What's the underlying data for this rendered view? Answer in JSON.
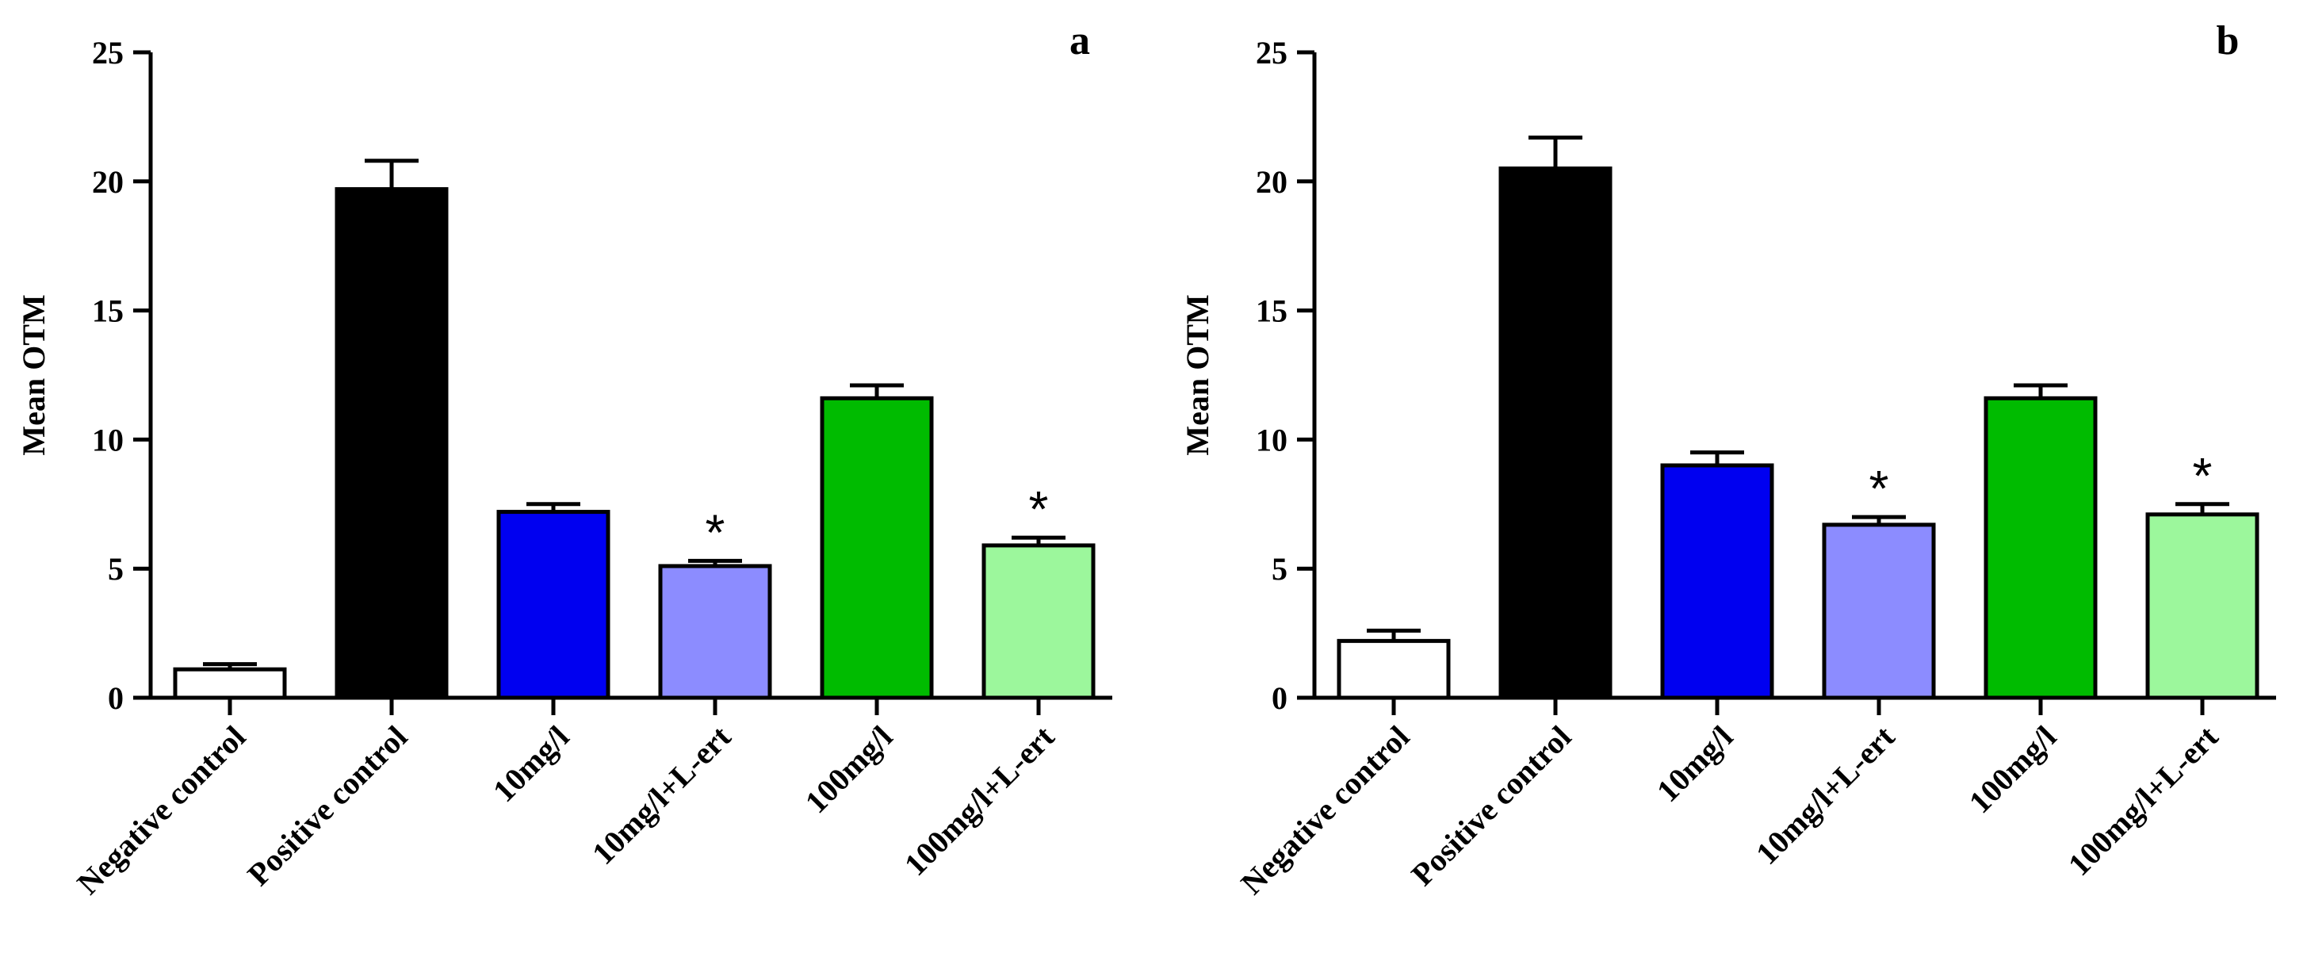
{
  "chart_data": [
    {
      "type": "bar",
      "panel_label": "a",
      "ylabel": "Mean OTM",
      "xlabel": "",
      "ylim": [
        0,
        25
      ],
      "yticks": [
        0,
        5,
        10,
        15,
        20,
        25
      ],
      "categories": [
        "Negative control",
        "Positive control",
        "10mg/l",
        "10mg/l+L-ert",
        "100mg/l",
        "100mg/l+L-ert"
      ],
      "values": [
        1.1,
        19.7,
        7.2,
        5.1,
        11.6,
        5.9
      ],
      "errors": [
        0.2,
        1.1,
        0.3,
        0.2,
        0.5,
        0.3
      ],
      "colors": [
        "#ffffff",
        "#000000",
        "#0000f0",
        "#8c8cff",
        "#00bb00",
        "#9cf79c"
      ],
      "significance": [
        "",
        "",
        "",
        "*",
        "",
        "*"
      ]
    },
    {
      "type": "bar",
      "panel_label": "b",
      "ylabel": "Mean OTM",
      "xlabel": "",
      "ylim": [
        0,
        25
      ],
      "yticks": [
        0,
        5,
        10,
        15,
        20,
        25
      ],
      "categories": [
        "Negative control",
        "Positive control",
        "10mg/l",
        "10mg/l+L-ert",
        "100mg/l",
        "100mg/l+L-ert"
      ],
      "values": [
        2.2,
        20.5,
        9.0,
        6.7,
        11.6,
        7.1
      ],
      "errors": [
        0.4,
        1.2,
        0.5,
        0.3,
        0.5,
        0.4
      ],
      "colors": [
        "#ffffff",
        "#000000",
        "#0000f0",
        "#8c8cff",
        "#00bb00",
        "#9cf79c"
      ],
      "significance": [
        "",
        "",
        "",
        "*",
        "",
        "*"
      ]
    }
  ]
}
